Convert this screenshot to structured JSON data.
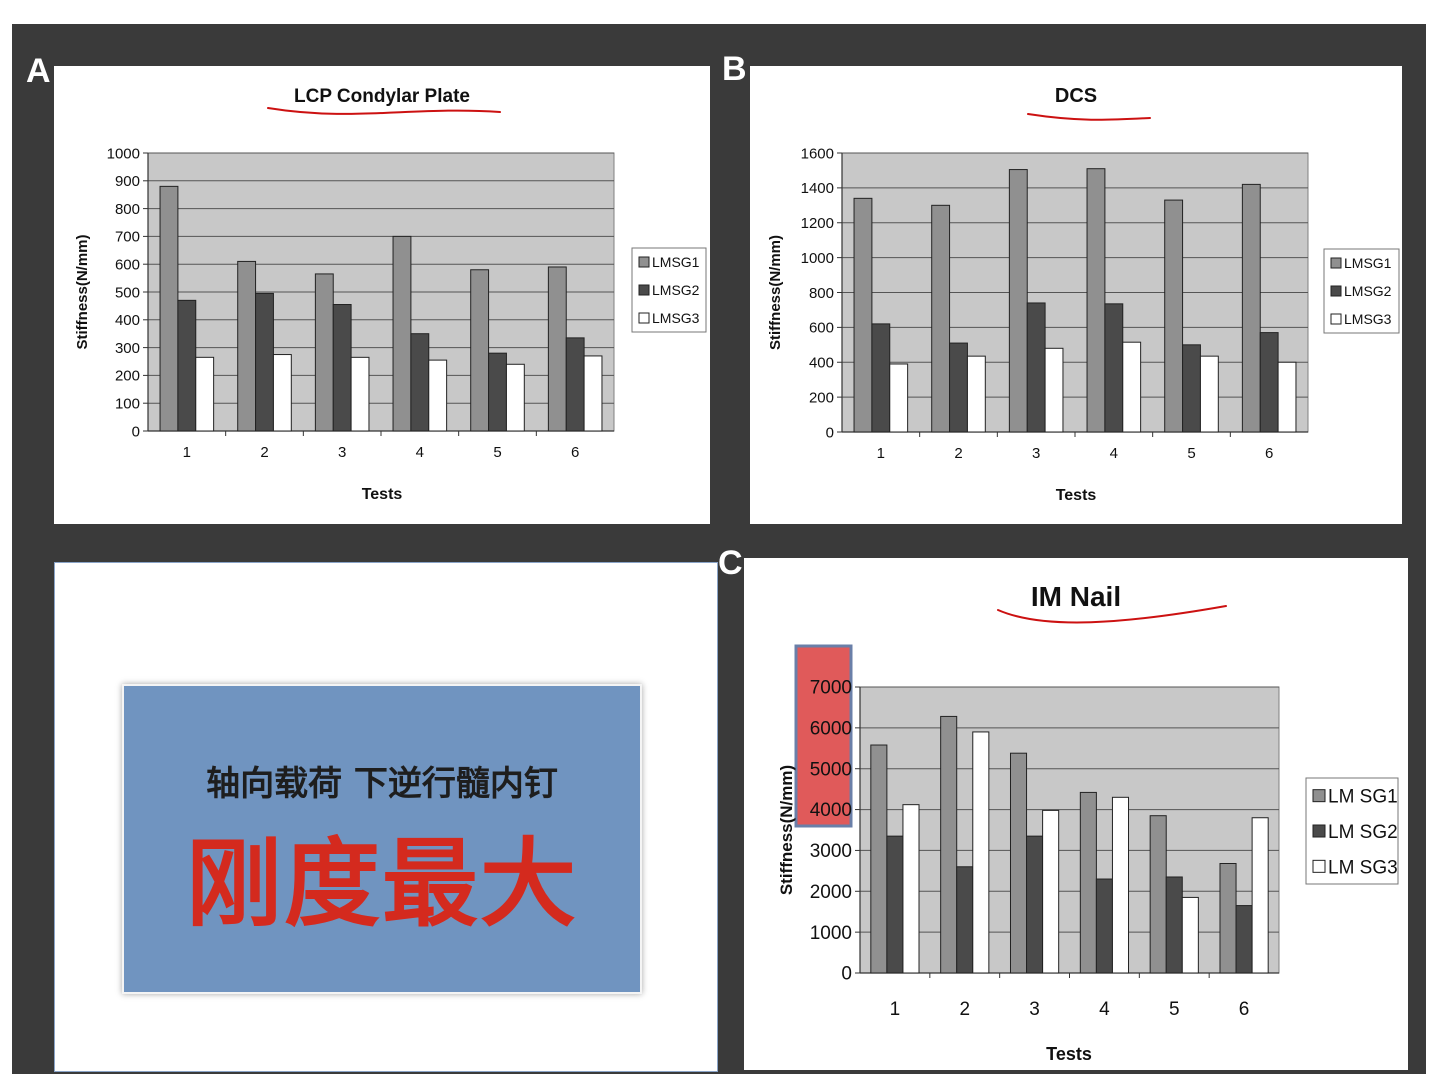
{
  "panels": {
    "a": "A",
    "b": "B",
    "c": "C"
  },
  "callout": {
    "line1": "轴向载荷 下逆行髓内钉",
    "line2": "刚度最大"
  },
  "colors": {
    "LMSG1": "#909090",
    "LMSG2": "#4a4a4a",
    "LMSG3": "#ffffff",
    "plot_bg": "#c8c8c8",
    "highlight": "#e05a5a",
    "annotation": "#cc1111",
    "callout_bg": "#7094c0"
  },
  "chart_data": [
    {
      "id": "A",
      "type": "bar",
      "title": "LCP Condylar Plate",
      "xlabel": "Tests",
      "ylabel": "Stiffness(N/mm)",
      "categories": [
        "1",
        "2",
        "3",
        "4",
        "5",
        "6"
      ],
      "ylim": [
        0,
        1000
      ],
      "yticks": [
        0,
        100,
        200,
        300,
        400,
        500,
        600,
        700,
        800,
        900,
        1000
      ],
      "grid": true,
      "legend": "right",
      "series": [
        {
          "name": "LMSG1",
          "values": [
            880,
            610,
            565,
            700,
            580,
            590
          ]
        },
        {
          "name": "LMSG2",
          "values": [
            470,
            495,
            455,
            350,
            280,
            335
          ]
        },
        {
          "name": "LMSG3",
          "values": [
            265,
            275,
            265,
            255,
            240,
            270
          ]
        }
      ]
    },
    {
      "id": "B",
      "type": "bar",
      "title": "DCS",
      "xlabel": "Tests",
      "ylabel": "Stiffness(N/mm)",
      "categories": [
        "1",
        "2",
        "3",
        "4",
        "5",
        "6"
      ],
      "ylim": [
        0,
        1600
      ],
      "yticks": [
        0,
        200,
        400,
        600,
        800,
        1000,
        1200,
        1400,
        1600
      ],
      "grid": true,
      "legend": "right",
      "series": [
        {
          "name": "LMSG1",
          "values": [
            1340,
            1300,
            1505,
            1510,
            1330,
            1420
          ]
        },
        {
          "name": "LMSG2",
          "values": [
            620,
            510,
            740,
            735,
            500,
            570
          ]
        },
        {
          "name": "LMSG3",
          "values": [
            390,
            435,
            480,
            515,
            435,
            400
          ]
        }
      ]
    },
    {
      "id": "C",
      "type": "bar",
      "title": "IM Nail",
      "xlabel": "Tests",
      "ylabel": "Stiffness(N/mm)",
      "categories": [
        "1",
        "2",
        "3",
        "4",
        "5",
        "6"
      ],
      "ylim": [
        0,
        7000
      ],
      "yticks": [
        0,
        1000,
        2000,
        3000,
        4000,
        5000,
        6000,
        7000
      ],
      "ytick_labels": [
        "0",
        "1000",
        "2000",
        "3000",
        "4000",
        "5000",
        "6000",
        "7000"
      ],
      "grid": true,
      "legend": "right",
      "series": [
        {
          "name": "LM SG1",
          "values": [
            5580,
            6280,
            5380,
            4420,
            3850,
            2680
          ]
        },
        {
          "name": "LM SG2",
          "values": [
            3350,
            2600,
            3350,
            2300,
            2350,
            1650
          ]
        },
        {
          "name": "LM SG3",
          "values": [
            4120,
            5900,
            3980,
            4300,
            1850,
            3800
          ]
        }
      ]
    }
  ]
}
